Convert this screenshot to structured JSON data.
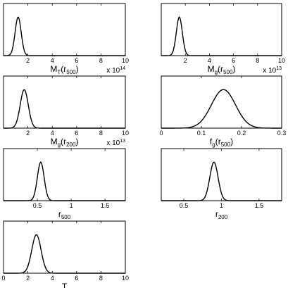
{
  "chart_data": [
    {
      "type": "line",
      "xlabel_main": "M",
      "xlabel_sub": "T",
      "xlabel_paren_open": "(r",
      "xlabel_paren_sub": "500",
      "xlabel_paren_close": ")",
      "xlim": [
        0,
        10
      ],
      "xticks": [
        "2",
        "4",
        "6",
        "8",
        "10"
      ],
      "xtick_values": [
        2,
        4,
        6,
        8,
        10
      ],
      "exponent_base": "x 10",
      "exponent_power": "14",
      "series": [
        {
          "peak_x": 1.2,
          "sigma": 0.25
        }
      ]
    },
    {
      "type": "line",
      "xlabel_main": "M",
      "xlabel_sub": "g",
      "xlabel_paren_open": "(r",
      "xlabel_paren_sub": "500",
      "xlabel_paren_close": ")",
      "xlim": [
        0,
        10
      ],
      "xticks": [
        "2",
        "4",
        "6",
        "8",
        "10"
      ],
      "xtick_values": [
        2,
        4,
        6,
        8,
        10
      ],
      "exponent_base": "x 10",
      "exponent_power": "13",
      "series": [
        {
          "peak_x": 1.5,
          "sigma": 0.25
        }
      ]
    },
    {
      "type": "line",
      "xlabel_main": "M",
      "xlabel_sub": "g",
      "xlabel_paren_open": "(r",
      "xlabel_paren_sub": "200",
      "xlabel_paren_close": ")",
      "xlim": [
        0,
        10
      ],
      "xticks": [
        "2",
        "4",
        "6",
        "8",
        "10"
      ],
      "xtick_values": [
        2,
        4,
        6,
        8,
        10
      ],
      "exponent_base": "x 10",
      "exponent_power": "13",
      "series": [
        {
          "peak_x": 1.7,
          "sigma": 0.33
        }
      ]
    },
    {
      "type": "line",
      "xlabel_main": "f",
      "xlabel_sub": "g",
      "xlabel_paren_open": "(r",
      "xlabel_paren_sub": "500",
      "xlabel_paren_close": ")",
      "xlim": [
        0,
        0.3
      ],
      "xticks": [
        "0",
        "0.1",
        "0.2",
        "0.3"
      ],
      "xtick_values": [
        0,
        0.1,
        0.2,
        0.3
      ],
      "exponent_base": "",
      "exponent_power": "",
      "series": [
        {
          "peak_x": 0.155,
          "sigma": 0.03
        }
      ]
    },
    {
      "type": "line",
      "xlabel_main": "r",
      "xlabel_sub": "500",
      "xlabel_paren_open": "",
      "xlabel_paren_sub": "",
      "xlabel_paren_close": "",
      "xlim": [
        0,
        1.8
      ],
      "xticks": [
        "0.5",
        "1",
        "1.5"
      ],
      "xtick_values": [
        0.5,
        1,
        1.5
      ],
      "exponent_base": "",
      "exponent_power": "",
      "series": [
        {
          "peak_x": 0.55,
          "sigma": 0.05
        }
      ]
    },
    {
      "type": "line",
      "xlabel_main": "r",
      "xlabel_sub": "200",
      "xlabel_paren_open": "",
      "xlabel_paren_sub": "",
      "xlabel_paren_close": "",
      "xlim": [
        0.2,
        1.8
      ],
      "xticks": [
        "0.5",
        "1",
        "1.5"
      ],
      "xtick_values": [
        0.5,
        1,
        1.5
      ],
      "exponent_base": "",
      "exponent_power": "",
      "series": [
        {
          "peak_x": 0.9,
          "sigma": 0.055
        }
      ]
    },
    {
      "type": "line",
      "xlabel_main": "T",
      "xlabel_sub": "",
      "xlabel_paren_open": "",
      "xlabel_paren_sub": "",
      "xlabel_paren_close": "",
      "xlim": [
        0,
        10
      ],
      "xticks": [
        "0",
        "2",
        "4",
        "6",
        "8",
        "10"
      ],
      "xtick_values": [
        0,
        2,
        4,
        6,
        8,
        10
      ],
      "exponent_base": "",
      "exponent_power": "",
      "series": [
        {
          "peak_x": 2.7,
          "sigma": 0.38
        }
      ]
    }
  ]
}
